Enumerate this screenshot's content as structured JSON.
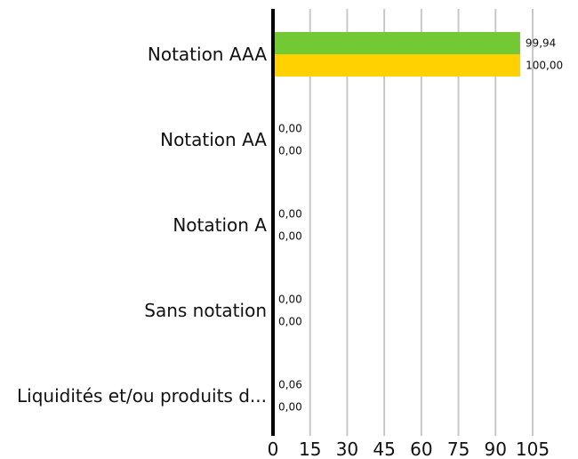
{
  "chart_data": {
    "type": "bar",
    "orientation": "horizontal",
    "categories": [
      "Notation AAA",
      "Notation AA",
      "Notation A",
      "Sans notation",
      "Liquidités et/ou produits d..."
    ],
    "series": [
      {
        "color": "#72c934",
        "values": [
          99.94,
          0.0,
          0.0,
          0.0,
          0.06
        ],
        "labels": [
          "99,94",
          "0,00",
          "0,00",
          "0,00",
          "0,06"
        ]
      },
      {
        "color": "#ffd100",
        "values": [
          100.0,
          0.0,
          0.0,
          0.0,
          0.0
        ],
        "labels": [
          "100,00",
          "0,00",
          "0,00",
          "0,00",
          "0,00"
        ]
      }
    ],
    "xlim": [
      0,
      105
    ],
    "xticks": [
      0,
      15,
      30,
      45,
      60,
      75,
      90,
      105
    ],
    "xtick_labels": [
      "0",
      "15",
      "30",
      "45",
      "60",
      "75",
      "90",
      "105"
    ],
    "grid": true,
    "colors": {
      "grid": "#c8c8c8",
      "axis": "#000000"
    }
  }
}
